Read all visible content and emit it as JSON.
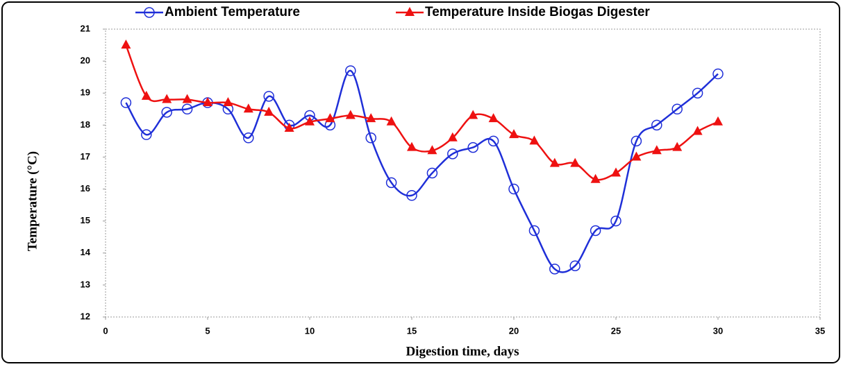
{
  "chart_data": {
    "type": "line",
    "x": [
      1,
      2,
      3,
      4,
      5,
      6,
      7,
      8,
      9,
      10,
      11,
      12,
      13,
      14,
      15,
      16,
      17,
      18,
      19,
      20,
      21,
      22,
      23,
      24,
      25,
      26,
      27,
      28,
      29,
      30
    ],
    "series": [
      {
        "name": "Ambient Temperature",
        "color": "#1f2fd8",
        "marker": "circle",
        "values": [
          18.7,
          17.7,
          18.4,
          18.5,
          18.7,
          18.5,
          17.6,
          18.9,
          18.0,
          18.3,
          18.0,
          19.7,
          17.6,
          16.2,
          15.8,
          16.5,
          17.1,
          17.3,
          17.5,
          16.0,
          14.7,
          13.5,
          13.6,
          14.7,
          15.0,
          17.5,
          18.0,
          18.5,
          19.0,
          19.6
        ]
      },
      {
        "name": "Temperature Inside Biogas Digester",
        "color": "#ee1111",
        "marker": "triangle",
        "values": [
          20.5,
          18.9,
          18.8,
          18.8,
          18.7,
          18.7,
          18.5,
          18.4,
          17.9,
          18.1,
          18.2,
          18.3,
          18.2,
          18.1,
          17.3,
          17.2,
          17.6,
          18.3,
          18.2,
          17.7,
          17.5,
          16.8,
          16.8,
          16.3,
          16.5,
          17.0,
          17.2,
          17.3,
          17.8,
          18.1
        ]
      }
    ],
    "x_label": "Digestion time, days",
    "y_label": "Temperature (°C)",
    "xlim": [
      0,
      35
    ],
    "xticks": [
      0,
      5,
      10,
      15,
      20,
      25,
      30,
      35
    ],
    "ylim": [
      12,
      21
    ],
    "yticks": [
      12,
      13,
      14,
      15,
      16,
      17,
      18,
      19,
      20,
      21
    ],
    "grid": false,
    "smooth": true,
    "legend": "top"
  }
}
